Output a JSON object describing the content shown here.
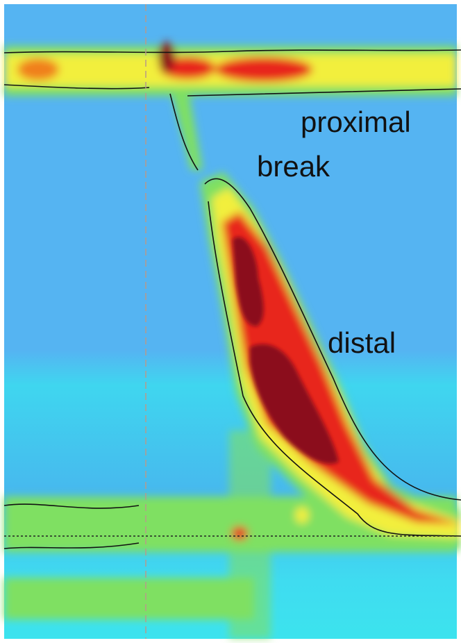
{
  "labels": [
    "proximal",
    "break",
    "distal"
  ]
}
